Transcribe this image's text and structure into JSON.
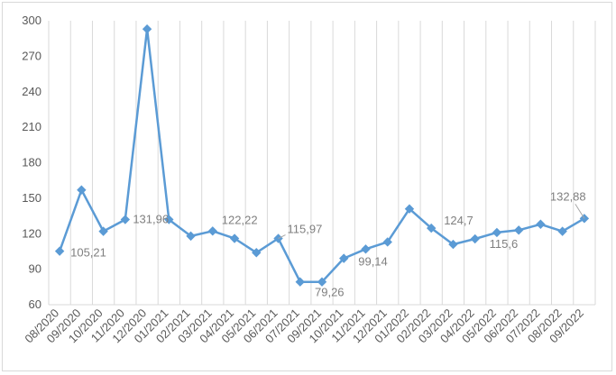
{
  "chart_data": {
    "type": "line",
    "title": "",
    "xlabel": "",
    "ylabel": "",
    "ylim": [
      60,
      300
    ],
    "yticks": [
      60,
      90,
      120,
      150,
      180,
      210,
      240,
      270,
      300
    ],
    "grid": "vertical",
    "legend": "none",
    "colors": {
      "line": "#5b9bd5",
      "grid": "#d9d9d9",
      "text": "#595959",
      "label": "#7f7f7f"
    },
    "categories": [
      "08/2020",
      "09/2020",
      "10/2020",
      "11/2020",
      "12/2020",
      "01/2021",
      "02/2021",
      "03/2021",
      "04/2021",
      "05/2021",
      "06/2021",
      "07/2021",
      "09/2021",
      "10/2021",
      "11/2021",
      "12/2021",
      "01/2022",
      "02/2022",
      "03/2022",
      "04/2022",
      "05/2022",
      "06/2022",
      "07/2022",
      "08/2022",
      "09/2022"
    ],
    "series": [
      {
        "values": [
          105.21,
          157,
          122,
          131.96,
          293,
          131.96,
          118,
          122.22,
          115.97,
          104,
          115.97,
          79.26,
          79.26,
          99.14,
          107,
          113,
          141,
          124.7,
          111,
          115.6,
          121,
          123,
          128,
          122,
          132.88
        ]
      }
    ],
    "data_labels": [
      {
        "index": 0,
        "text": "105,21"
      },
      {
        "index": 5,
        "text": "131,96"
      },
      {
        "index": 7,
        "text": "122,22"
      },
      {
        "index": 10,
        "text": "115,97"
      },
      {
        "index": 12,
        "text": "79,26"
      },
      {
        "index": 13,
        "text": "99,14"
      },
      {
        "index": 17,
        "text": "124,7"
      },
      {
        "index": 19,
        "text": "115,6"
      },
      {
        "index": 24,
        "text": "132,88"
      }
    ]
  }
}
